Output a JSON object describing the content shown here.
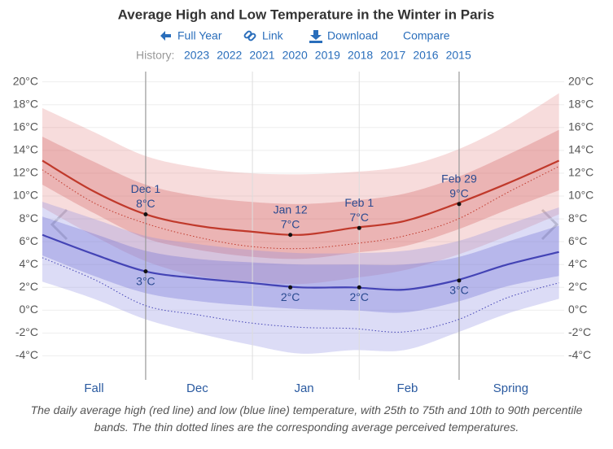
{
  "chart_data": {
    "type": "band-line",
    "title": "Average High and Low Temperature in the Winter in Paris",
    "x": [
      0,
      15,
      30,
      45,
      60,
      75,
      90,
      105,
      120,
      135,
      150
    ],
    "xlim": [
      0,
      151.5
    ],
    "xticks": [
      {
        "value": 15,
        "label": "Fall"
      },
      {
        "value": 45,
        "label": "Dec"
      },
      {
        "value": 76,
        "label": "Jan"
      },
      {
        "value": 106,
        "label": "Feb"
      },
      {
        "value": 136,
        "label": "Spring"
      }
    ],
    "xgrid_major": [
      30,
      121
    ],
    "xgrid_minor": [
      61,
      92
    ],
    "ylim": [
      -6.1,
      20.9
    ],
    "yticks": [
      {
        "value": -4,
        "label": "-4°C"
      },
      {
        "value": -2,
        "label": "-2°C"
      },
      {
        "value": 0,
        "label": "0°C"
      },
      {
        "value": 2,
        "label": "2°C"
      },
      {
        "value": 4,
        "label": "4°C"
      },
      {
        "value": 6,
        "label": "6°C"
      },
      {
        "value": 8,
        "label": "8°C"
      },
      {
        "value": 10,
        "label": "10°C"
      },
      {
        "value": 12,
        "label": "12°C"
      },
      {
        "value": 14,
        "label": "14°C"
      },
      {
        "value": 16,
        "label": "16°C"
      },
      {
        "value": 18,
        "label": "18°C"
      },
      {
        "value": 20,
        "label": "20°C"
      }
    ],
    "grid": true,
    "bands": [
      {
        "color": "rgba(225,130,130,0.28)",
        "low": [
          9.0,
          6.5,
          4.3,
          3.0,
          2.5,
          2.3,
          2.8,
          3.5,
          4.8,
          6.5,
          8.4
        ],
        "high": [
          17.7,
          15.6,
          13.5,
          12.5,
          12.0,
          11.9,
          12.1,
          12.6,
          14.0,
          16.2,
          19.0
        ]
      },
      {
        "color": "rgba(205,80,80,0.28)",
        "low": [
          11.0,
          8.5,
          6.3,
          5.3,
          4.7,
          4.5,
          5.0,
          5.6,
          7.0,
          8.8,
          10.5
        ],
        "high": [
          15.2,
          13.0,
          11.0,
          10.0,
          9.5,
          9.3,
          9.6,
          10.2,
          11.6,
          13.6,
          15.8
        ]
      },
      {
        "color": "rgba(140,140,225,0.30)",
        "low": [
          2.5,
          1.0,
          -0.8,
          -2.0,
          -3.0,
          -3.8,
          -3.5,
          -3.5,
          -2.0,
          -0.3,
          1.0
        ],
        "high": [
          9.5,
          8.0,
          6.5,
          5.8,
          5.3,
          5.0,
          5.0,
          5.2,
          6.0,
          7.5,
          9.0
        ]
      },
      {
        "color": "rgba(100,100,210,0.30)",
        "low": [
          4.8,
          3.0,
          1.5,
          0.8,
          0.4,
          0.1,
          0.0,
          -0.2,
          0.7,
          2.1,
          3.0
        ],
        "high": [
          8.2,
          6.7,
          5.2,
          4.5,
          4.2,
          4.0,
          4.0,
          4.0,
          4.6,
          6.0,
          7.4
        ]
      }
    ],
    "series": [
      {
        "color": "#c0392b",
        "style": "solid",
        "values": [
          13.1,
          10.4,
          8.4,
          7.4,
          6.9,
          6.6,
          7.2,
          7.8,
          9.3,
          11.1,
          13.1
        ]
      },
      {
        "color": "#4343b5",
        "style": "solid",
        "values": [
          6.6,
          4.9,
          3.4,
          2.8,
          2.4,
          2.0,
          2.0,
          1.8,
          2.6,
          4.0,
          5.1
        ]
      },
      {
        "color": "#c0392b",
        "style": "dotted",
        "values": [
          12.3,
          9.4,
          7.6,
          6.4,
          5.6,
          5.4,
          5.8,
          6.5,
          7.9,
          10.3,
          12.6
        ]
      },
      {
        "color": "#4343b5",
        "style": "dotted",
        "values": [
          4.6,
          2.7,
          0.4,
          -0.4,
          -1.1,
          -1.5,
          -1.6,
          -1.9,
          -0.9,
          1.1,
          2.4
        ]
      }
    ],
    "annotations": [
      {
        "x": 30,
        "y": 8.4,
        "date_label": "Dec 1",
        "value_label": "8°C",
        "position": "above"
      },
      {
        "x": 72,
        "y": 6.6,
        "date_label": "Jan 12",
        "value_label": "7°C",
        "position": "above"
      },
      {
        "x": 92,
        "y": 7.2,
        "date_label": "Feb 1",
        "value_label": "7°C",
        "position": "above"
      },
      {
        "x": 121,
        "y": 9.3,
        "date_label": "Feb 29",
        "value_label": "9°C",
        "position": "above"
      },
      {
        "x": 30,
        "y": 3.4,
        "value_label": "3°C",
        "position": "below"
      },
      {
        "x": 72,
        "y": 2.0,
        "value_label": "2°C",
        "position": "below"
      },
      {
        "x": 92,
        "y": 2.0,
        "value_label": "2°C",
        "position": "below"
      },
      {
        "x": 121,
        "y": 2.6,
        "value_label": "3°C",
        "position": "below"
      }
    ]
  },
  "toolbar": {
    "links": [
      "Full Year",
      "Link",
      "Download",
      "Compare"
    ],
    "history_label": "History:",
    "years": [
      "2023",
      "2022",
      "2021",
      "2020",
      "2019",
      "2018",
      "2017",
      "2016",
      "2015"
    ]
  },
  "caption": "The daily average high (red line) and low (blue line) temperature, with 25th to 75th and 10th to 90th percentile bands. The thin dotted lines are the corresponding average perceived temperatures."
}
